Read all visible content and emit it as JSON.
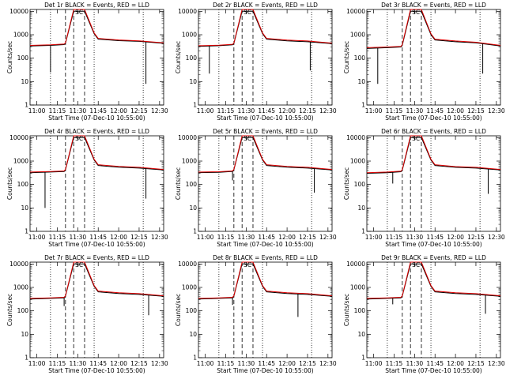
{
  "figure": {
    "x_tick_labels": [
      "11:00",
      "11:15",
      "11:30",
      "11:45",
      "12:00",
      "12:15",
      "12:30"
    ],
    "y_tick_labels": [
      "1",
      "10",
      "100",
      "1000",
      "10000"
    ],
    "ylabel": "Counts/sec",
    "xlabel": "Start Time (07-Dec-10 10:55:00)"
  },
  "chart_data": [
    {
      "type": "line",
      "title": "Det 1r BLACK = Events, RED = LLD",
      "xlabel": "Start Time (07-Dec-10 10:55:00)",
      "ylabel": "Counts/sec",
      "y_scale": "log",
      "ylim": [
        1,
        12000
      ],
      "xlim": [
        "10:55",
        "12:33"
      ],
      "x_ticks": [
        "11:00",
        "11:15",
        "11:30",
        "11:45",
        "12:00",
        "12:15",
        "12:30"
      ],
      "y_ticks": [
        1,
        10,
        100,
        1000,
        10000
      ],
      "series": [
        {
          "color": "#000000",
          "x": [
            "10:55",
            "11:10",
            "11:20",
            "11:21",
            "11:27",
            "11:35",
            "11:42",
            "11:45",
            "12:00",
            "12:15",
            "12:33"
          ],
          "y": [
            330,
            350,
            380,
            430,
            10000,
            10000,
            1100,
            650,
            560,
            520,
            430
          ]
        },
        {
          "color": "#dd0000",
          "x": [
            "10:55",
            "11:10",
            "11:20",
            "11:21",
            "11:27",
            "11:35",
            "11:42",
            "11:45",
            "12:00",
            "12:15",
            "12:33"
          ],
          "y": [
            350,
            370,
            400,
            450,
            12000,
            12000,
            1200,
            700,
            600,
            550,
            450
          ]
        }
      ],
      "dips": [
        {
          "x": "11:10",
          "y": 25
        },
        {
          "x": "12:20",
          "y": 8
        }
      ],
      "vertical_dotted": [
        "11:10",
        "11:42",
        "12:18"
      ],
      "vertical_dashed": [
        "11:21",
        "11:27",
        "11:35"
      ],
      "annotation": "SC"
    },
    {
      "type": "line",
      "title": "Det 2r BLACK = Events, RED = LLD",
      "xlabel": "Start Time (07-Dec-10 10:55:00)",
      "ylabel": "Counts/sec",
      "y_scale": "log",
      "ylim": [
        1,
        12000
      ],
      "xlim": [
        "10:55",
        "12:33"
      ],
      "x_ticks": [
        "11:00",
        "11:15",
        "11:30",
        "11:45",
        "12:00",
        "12:15",
        "12:30"
      ],
      "y_ticks": [
        1,
        10,
        100,
        1000,
        10000
      ],
      "series": [
        {
          "color": "#000000",
          "x": [
            "10:55",
            "11:10",
            "11:20",
            "11:21",
            "11:27",
            "11:35",
            "11:42",
            "11:45",
            "12:00",
            "12:15",
            "12:33"
          ],
          "y": [
            320,
            340,
            370,
            420,
            10000,
            10000,
            1100,
            650,
            550,
            500,
            420
          ]
        },
        {
          "color": "#dd0000",
          "x": [
            "10:55",
            "11:10",
            "11:20",
            "11:21",
            "11:27",
            "11:35",
            "11:42",
            "11:45",
            "12:00",
            "12:15",
            "12:33"
          ],
          "y": [
            340,
            360,
            390,
            440,
            12000,
            12000,
            1200,
            700,
            590,
            540,
            440
          ]
        }
      ],
      "dips": [
        {
          "x": "11:03",
          "y": 22
        },
        {
          "x": "12:17",
          "y": 30
        }
      ],
      "vertical_dotted": [
        "11:10",
        "11:42",
        "12:18"
      ],
      "vertical_dashed": [
        "11:21",
        "11:27",
        "11:35"
      ],
      "annotation": "SC"
    },
    {
      "type": "line",
      "title": "Det 3r BLACK = Events, RED = LLD",
      "xlabel": "Start Time (07-Dec-10 10:55:00)",
      "ylabel": "Counts/sec",
      "y_scale": "log",
      "ylim": [
        1,
        12000
      ],
      "xlim": [
        "10:55",
        "12:33"
      ],
      "x_ticks": [
        "11:00",
        "11:15",
        "11:30",
        "11:45",
        "12:00",
        "12:15",
        "12:30"
      ],
      "y_ticks": [
        1,
        10,
        100,
        1000,
        10000
      ],
      "series": [
        {
          "color": "#000000",
          "x": [
            "10:55",
            "11:10",
            "11:20",
            "11:21",
            "11:27",
            "11:35",
            "11:42",
            "11:45",
            "12:00",
            "12:15",
            "12:33"
          ],
          "y": [
            260,
            280,
            300,
            350,
            10000,
            10000,
            1000,
            600,
            500,
            450,
            330
          ]
        },
        {
          "color": "#dd0000",
          "x": [
            "10:55",
            "11:10",
            "11:20",
            "11:21",
            "11:27",
            "11:35",
            "11:42",
            "11:45",
            "12:00",
            "12:15",
            "12:33"
          ],
          "y": [
            280,
            300,
            320,
            380,
            12000,
            12000,
            1100,
            650,
            540,
            480,
            350
          ]
        }
      ],
      "dips": [
        {
          "x": "11:03",
          "y": 8
        },
        {
          "x": "12:20",
          "y": 22
        }
      ],
      "vertical_dotted": [
        "11:10",
        "11:42",
        "12:18"
      ],
      "vertical_dashed": [
        "11:21",
        "11:27",
        "11:35"
      ],
      "annotation": "SC"
    },
    {
      "type": "line",
      "title": "Det 4r BLACK = Events, RED = LLD",
      "xlabel": "Start Time (07-Dec-10 10:55:00)",
      "ylabel": "Counts/sec",
      "y_scale": "log",
      "ylim": [
        1,
        12000
      ],
      "xlim": [
        "10:55",
        "12:33"
      ],
      "x_ticks": [
        "11:00",
        "11:15",
        "11:30",
        "11:45",
        "12:00",
        "12:15",
        "12:30"
      ],
      "y_ticks": [
        1,
        10,
        100,
        1000,
        10000
      ],
      "series": [
        {
          "color": "#000000",
          "x": [
            "10:55",
            "11:10",
            "11:20",
            "11:21",
            "11:27",
            "11:35",
            "11:42",
            "11:45",
            "12:00",
            "12:15",
            "12:33"
          ],
          "y": [
            320,
            340,
            360,
            420,
            10000,
            10000,
            1100,
            650,
            550,
            500,
            420
          ]
        },
        {
          "color": "#dd0000",
          "x": [
            "10:55",
            "11:10",
            "11:20",
            "11:21",
            "11:27",
            "11:35",
            "11:42",
            "11:45",
            "12:00",
            "12:15",
            "12:33"
          ],
          "y": [
            340,
            360,
            380,
            440,
            12000,
            12000,
            1200,
            700,
            590,
            540,
            440
          ]
        }
      ],
      "dips": [
        {
          "x": "11:06",
          "y": 10
        },
        {
          "x": "12:20",
          "y": 25
        }
      ],
      "vertical_dotted": [
        "11:10",
        "11:42",
        "12:18"
      ],
      "vertical_dashed": [
        "11:21",
        "11:27",
        "11:35"
      ],
      "annotation": "SC"
    },
    {
      "type": "line",
      "title": "Det 5r BLACK = Events, RED = LLD",
      "xlabel": "Start Time (07-Dec-10 10:55:00)",
      "ylabel": "Counts/sec",
      "y_scale": "log",
      "ylim": [
        1,
        12000
      ],
      "xlim": [
        "10:55",
        "12:33"
      ],
      "x_ticks": [
        "11:00",
        "11:15",
        "11:30",
        "11:45",
        "12:00",
        "12:15",
        "12:30"
      ],
      "y_ticks": [
        1,
        10,
        100,
        1000,
        10000
      ],
      "series": [
        {
          "color": "#000000",
          "x": [
            "10:55",
            "11:10",
            "11:20",
            "11:21",
            "11:27",
            "11:35",
            "11:42",
            "11:45",
            "12:00",
            "12:15",
            "12:33"
          ],
          "y": [
            320,
            330,
            360,
            420,
            10000,
            10000,
            1100,
            650,
            550,
            500,
            420
          ]
        },
        {
          "color": "#dd0000",
          "x": [
            "10:55",
            "11:10",
            "11:20",
            "11:21",
            "11:27",
            "11:35",
            "11:42",
            "11:45",
            "12:00",
            "12:15",
            "12:33"
          ],
          "y": [
            340,
            350,
            380,
            440,
            12000,
            12000,
            1200,
            700,
            590,
            540,
            440
          ]
        }
      ],
      "dips": [
        {
          "x": "11:20",
          "y": 150
        },
        {
          "x": "12:20",
          "y": 45
        }
      ],
      "vertical_dotted": [
        "11:10",
        "11:42",
        "12:18"
      ],
      "vertical_dashed": [
        "11:21",
        "11:27",
        "11:35"
      ],
      "annotation": "SC"
    },
    {
      "type": "line",
      "title": "Det 6r BLACK = Events, RED = LLD",
      "xlabel": "Start Time (07-Dec-10 10:55:00)",
      "ylabel": "Counts/sec",
      "y_scale": "log",
      "ylim": [
        1,
        12000
      ],
      "xlim": [
        "10:55",
        "12:33"
      ],
      "x_ticks": [
        "11:00",
        "11:15",
        "11:30",
        "11:45",
        "12:00",
        "12:15",
        "12:30"
      ],
      "y_ticks": [
        1,
        10,
        100,
        1000,
        10000
      ],
      "series": [
        {
          "color": "#000000",
          "x": [
            "10:55",
            "11:10",
            "11:20",
            "11:21",
            "11:27",
            "11:35",
            "11:42",
            "11:45",
            "12:00",
            "12:15",
            "12:33"
          ],
          "y": [
            300,
            320,
            350,
            400,
            10000,
            10000,
            1100,
            650,
            540,
            500,
            420
          ]
        },
        {
          "color": "#dd0000",
          "x": [
            "10:55",
            "11:10",
            "11:20",
            "11:21",
            "11:27",
            "11:35",
            "11:42",
            "11:45",
            "12:00",
            "12:15",
            "12:33"
          ],
          "y": [
            320,
            340,
            370,
            430,
            12000,
            12000,
            1200,
            700,
            580,
            540,
            440
          ]
        }
      ],
      "dips": [
        {
          "x": "11:14",
          "y": 110
        },
        {
          "x": "12:24",
          "y": 40
        }
      ],
      "vertical_dotted": [
        "11:10",
        "11:42",
        "12:18"
      ],
      "vertical_dashed": [
        "11:21",
        "11:27",
        "11:35"
      ],
      "annotation": "SC"
    },
    {
      "type": "line",
      "title": "Det 7r BLACK = Events, RED = LLD",
      "xlabel": "Start Time (07-Dec-10 10:55:00)",
      "ylabel": "Counts/sec",
      "y_scale": "log",
      "ylim": [
        1,
        12000
      ],
      "xlim": [
        "10:55",
        "12:33"
      ],
      "x_ticks": [
        "11:00",
        "11:15",
        "11:30",
        "11:45",
        "12:00",
        "12:15",
        "12:30"
      ],
      "y_ticks": [
        1,
        10,
        100,
        1000,
        10000
      ],
      "series": [
        {
          "color": "#000000",
          "x": [
            "10:55",
            "11:10",
            "11:20",
            "11:21",
            "11:27",
            "11:35",
            "11:42",
            "11:45",
            "12:00",
            "12:15",
            "12:33"
          ],
          "y": [
            320,
            340,
            360,
            420,
            10000,
            10000,
            1100,
            650,
            550,
            500,
            420
          ]
        },
        {
          "color": "#dd0000",
          "x": [
            "10:55",
            "11:10",
            "11:20",
            "11:21",
            "11:27",
            "11:35",
            "11:42",
            "11:45",
            "12:00",
            "12:15",
            "12:33"
          ],
          "y": [
            340,
            360,
            380,
            440,
            12000,
            12000,
            1200,
            700,
            590,
            540,
            440
          ]
        }
      ],
      "dips": [
        {
          "x": "11:20",
          "y": 160
        },
        {
          "x": "12:22",
          "y": 65
        }
      ],
      "vertical_dotted": [
        "11:10",
        "11:42",
        "12:18"
      ],
      "vertical_dashed": [
        "11:21",
        "11:27",
        "11:35"
      ],
      "annotation": "SC"
    },
    {
      "type": "line",
      "title": "Det 8r BLACK = Events, RED = LLD",
      "xlabel": "Start Time (07-Dec-10 10:55:00)",
      "ylabel": "Counts/sec",
      "y_scale": "log",
      "ylim": [
        1,
        12000
      ],
      "xlim": [
        "10:55",
        "12:33"
      ],
      "x_ticks": [
        "11:00",
        "11:15",
        "11:30",
        "11:45",
        "12:00",
        "12:15",
        "12:30"
      ],
      "y_ticks": [
        1,
        10,
        100,
        1000,
        10000
      ],
      "series": [
        {
          "color": "#000000",
          "x": [
            "10:55",
            "11:10",
            "11:20",
            "11:21",
            "11:27",
            "11:35",
            "11:42",
            "11:45",
            "12:00",
            "12:15",
            "12:33"
          ],
          "y": [
            320,
            340,
            360,
            420,
            10000,
            10000,
            1100,
            650,
            550,
            500,
            420
          ]
        },
        {
          "color": "#dd0000",
          "x": [
            "10:55",
            "11:10",
            "11:20",
            "11:21",
            "11:27",
            "11:35",
            "11:42",
            "11:45",
            "12:00",
            "12:15",
            "12:33"
          ],
          "y": [
            340,
            360,
            380,
            440,
            12000,
            12000,
            1200,
            700,
            590,
            540,
            440
          ]
        }
      ],
      "dips": [
        {
          "x": "11:20",
          "y": 180
        },
        {
          "x": "12:08",
          "y": 55
        }
      ],
      "vertical_dotted": [
        "11:10",
        "11:42",
        "12:18"
      ],
      "vertical_dashed": [
        "11:21",
        "11:27",
        "11:35"
      ],
      "annotation": "SC"
    },
    {
      "type": "line",
      "title": "Det 9r BLACK = Events, RED = LLD",
      "xlabel": "Start Time (07-Dec-10 10:55:00)",
      "ylabel": "Counts/sec",
      "y_scale": "log",
      "ylim": [
        1,
        12000
      ],
      "xlim": [
        "10:55",
        "12:33"
      ],
      "x_ticks": [
        "11:00",
        "11:15",
        "11:30",
        "11:45",
        "12:00",
        "12:15",
        "12:30"
      ],
      "y_ticks": [
        1,
        10,
        100,
        1000,
        10000
      ],
      "series": [
        {
          "color": "#000000",
          "x": [
            "10:55",
            "11:10",
            "11:20",
            "11:21",
            "11:27",
            "11:35",
            "11:42",
            "11:45",
            "12:00",
            "12:15",
            "12:33"
          ],
          "y": [
            320,
            340,
            360,
            420,
            10000,
            10000,
            1100,
            650,
            550,
            500,
            420
          ]
        },
        {
          "color": "#dd0000",
          "x": [
            "10:55",
            "11:10",
            "11:20",
            "11:21",
            "11:27",
            "11:35",
            "11:42",
            "11:45",
            "12:00",
            "12:15",
            "12:33"
          ],
          "y": [
            340,
            360,
            380,
            440,
            12000,
            12000,
            1200,
            700,
            590,
            540,
            440
          ]
        }
      ],
      "dips": [
        {
          "x": "11:14",
          "y": 190
        },
        {
          "x": "12:22",
          "y": 75
        }
      ],
      "vertical_dotted": [
        "11:10",
        "11:42",
        "12:18"
      ],
      "vertical_dashed": [
        "11:21",
        "11:27",
        "11:35"
      ],
      "annotation": "SC"
    }
  ]
}
